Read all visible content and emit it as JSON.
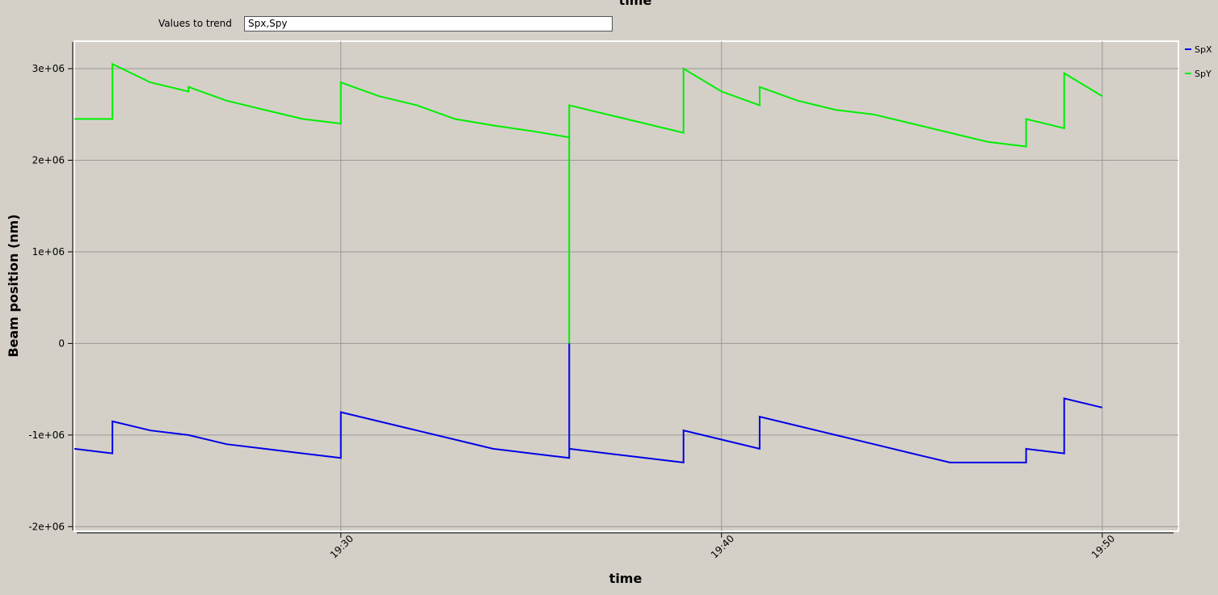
{
  "controls": {
    "label": "Values to trend",
    "value": "Spx,Spy"
  },
  "chart_data": {
    "type": "line",
    "xlabel": "time",
    "ylabel": "Beam position (nm)",
    "x": [
      "19:23",
      "19:24",
      "19:24",
      "19:25",
      "19:26",
      "19:26",
      "19:27",
      "19:28",
      "19:29",
      "19:30",
      "19:30",
      "19:31",
      "19:32",
      "19:33",
      "19:34",
      "19:35",
      "19:36",
      "19:36",
      "19:36",
      "19:37",
      "19:38",
      "19:39",
      "19:39",
      "19:40",
      "19:41",
      "19:41",
      "19:42",
      "19:43",
      "19:44",
      "19:45",
      "19:46",
      "19:47",
      "19:48",
      "19:48",
      "19:49",
      "19:49",
      "19:50"
    ],
    "series": [
      {
        "name": "SpX",
        "color": "#0000e6",
        "values": [
          -1150000,
          -1200000,
          -850000,
          -950000,
          -1000000,
          -1000000,
          -1100000,
          -1150000,
          -1200000,
          -1250000,
          -750000,
          -850000,
          -950000,
          -1050000,
          -1150000,
          -1200000,
          -1250000,
          0,
          -1150000,
          -1200000,
          -1250000,
          -1300000,
          -950000,
          -1050000,
          -1150000,
          -800000,
          -900000,
          -1000000,
          -1100000,
          -1200000,
          -1300000,
          -1300000,
          -1300000,
          -1150000,
          -1200000,
          -600000,
          -700000
        ]
      },
      {
        "name": "SpY",
        "color": "#00ee00",
        "values": [
          2450000,
          2450000,
          3050000,
          2850000,
          2750000,
          2800000,
          2650000,
          2550000,
          2450000,
          2400000,
          2850000,
          2700000,
          2600000,
          2450000,
          2380000,
          2320000,
          2250000,
          0,
          2600000,
          2500000,
          2400000,
          2300000,
          3000000,
          2750000,
          2600000,
          2800000,
          2650000,
          2550000,
          2500000,
          2400000,
          2300000,
          2200000,
          2150000,
          2450000,
          2350000,
          2950000,
          2700000
        ]
      }
    ],
    "xlim": [
      "19:23",
      "19:52"
    ],
    "xticks": [
      "19:30",
      "19:40",
      "19:50"
    ],
    "ylim": [
      -2050000,
      3300000
    ],
    "yticks": [
      {
        "value": -2000000,
        "label": "-2e+06"
      },
      {
        "value": -1000000,
        "label": "-1e+06"
      },
      0,
      {
        "value": 1000000,
        "label": "1e+06"
      },
      {
        "value": 2000000,
        "label": "2e+06"
      },
      {
        "value": 3000000,
        "label": "3e+06"
      }
    ],
    "grid": true,
    "legend": "right"
  }
}
